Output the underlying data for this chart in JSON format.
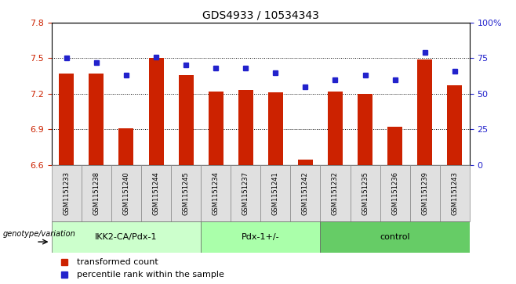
{
  "title": "GDS4933 / 10534343",
  "samples": [
    "GSM1151233",
    "GSM1151238",
    "GSM1151240",
    "GSM1151244",
    "GSM1151245",
    "GSM1151234",
    "GSM1151237",
    "GSM1151241",
    "GSM1151242",
    "GSM1151232",
    "GSM1151235",
    "GSM1151236",
    "GSM1151239",
    "GSM1151243"
  ],
  "red_values": [
    7.37,
    7.37,
    6.91,
    7.5,
    7.36,
    7.22,
    7.23,
    7.21,
    6.64,
    7.22,
    7.2,
    6.92,
    7.49,
    7.27
  ],
  "blue_values": [
    75,
    72,
    63,
    76,
    70,
    68,
    68,
    65,
    55,
    60,
    63,
    60,
    79,
    66
  ],
  "groups": [
    {
      "label": "IKK2-CA/Pdx-1",
      "start": 0,
      "end": 5,
      "color": "#ccffcc"
    },
    {
      "label": "Pdx-1+/-",
      "start": 5,
      "end": 9,
      "color": "#aaffaa"
    },
    {
      "label": "control",
      "start": 9,
      "end": 14,
      "color": "#66cc66"
    }
  ],
  "ylim_left": [
    6.6,
    7.8
  ],
  "ylim_right": [
    0,
    100
  ],
  "yticks_left": [
    6.6,
    6.9,
    7.2,
    7.5,
    7.8
  ],
  "yticks_right": [
    0,
    25,
    50,
    75,
    100
  ],
  "bar_color": "#cc2200",
  "dot_color": "#2222cc",
  "bar_width": 0.5,
  "genotype_label": "genotype/variation",
  "legend_bar": "transformed count",
  "legend_dot": "percentile rank within the sample",
  "gridlines": [
    7.5,
    7.2,
    6.9
  ]
}
